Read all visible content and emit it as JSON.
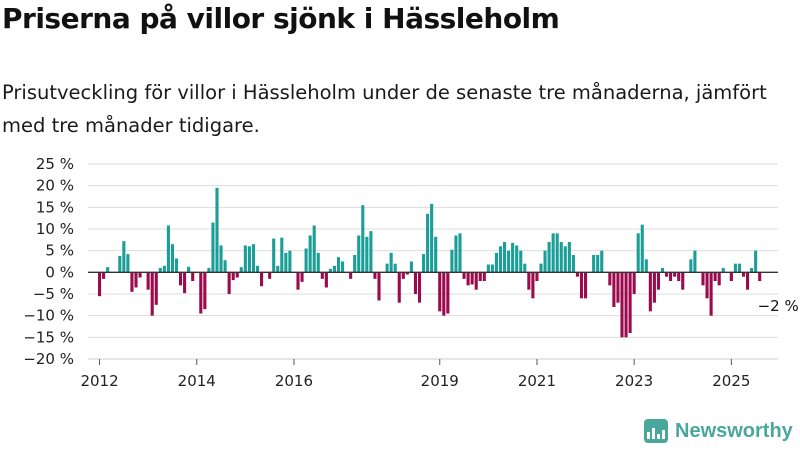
{
  "title": "Priserna på villor sjönk i Hässleholm",
  "subtitle": "Prisutveckling för villor i Hässleholm under de senaste tre månaderna, jämfört med tre månader tidigare.",
  "brand": {
    "name": "Newsworthy",
    "icon": "bar-chart-logo-icon"
  },
  "colors": {
    "positive": "#1a9e97",
    "negative": "#9b0a4d",
    "grid": "#dddddd",
    "axis": "#333333"
  },
  "chart_data": {
    "type": "bar",
    "ylabel": "",
    "xlabel": "",
    "ylim": [
      -20,
      25
    ],
    "yticks": [
      25,
      20,
      15,
      10,
      5,
      0,
      -5,
      -10,
      -15,
      -20
    ],
    "ytick_labels": [
      "25 %",
      "20 %",
      "15 %",
      "10 %",
      "5 %",
      "0 %",
      "−5 %",
      "−10 %",
      "−15 %",
      "−20 %"
    ],
    "xticks": [
      2012,
      2014,
      2016,
      2019,
      2021,
      2023,
      2025
    ],
    "x_start": "2012-01",
    "grid": true,
    "annotation": {
      "text": "−2 %",
      "target": "last"
    },
    "values": [
      -5.5,
      -1.5,
      1.2,
      0,
      0,
      3.8,
      7.2,
      4.2,
      -4.5,
      -3.5,
      -1.2,
      0,
      -4.0,
      -10.0,
      -7.5,
      1.0,
      1.5,
      10.8,
      6.5,
      3.2,
      -3.0,
      -4.8,
      1.3,
      -2.0,
      0,
      -9.5,
      -8.5,
      1.0,
      11.5,
      19.5,
      6.2,
      2.8,
      -5.0,
      -1.8,
      -1.2,
      1.2,
      6.2,
      6.0,
      6.5,
      1.5,
      -3.2,
      0,
      -1.5,
      7.8,
      1.5,
      8.0,
      4.5,
      5.0,
      0,
      -4.0,
      -2.2,
      5.5,
      8.5,
      10.8,
      4.5,
      -1.5,
      -3.5,
      0.8,
      1.5,
      3.5,
      2.5,
      0,
      -1.5,
      4.0,
      8.5,
      15.5,
      8.2,
      9.5,
      -1.5,
      -6.5,
      0,
      2.0,
      4.5,
      2.0,
      -7.0,
      -1.5,
      -0.5,
      2.5,
      -5.0,
      -7.0,
      4.2,
      13.5,
      15.8,
      8.2,
      -9.0,
      -10.0,
      -9.5,
      5.2,
      8.5,
      9.0,
      -1.5,
      -3.0,
      -2.8,
      -4.0,
      -2.0,
      -2.0,
      1.8,
      1.8,
      4.5,
      6.0,
      7.0,
      5.0,
      6.8,
      6.2,
      5.0,
      2.0,
      -4.0,
      -6.0,
      -2.0,
      2.0,
      5.0,
      7.0,
      9.0,
      9.0,
      7.0,
      6.0,
      7.0,
      4.0,
      -1.0,
      -6.0,
      -6.0,
      0,
      4.0,
      4.0,
      5.0,
      0,
      -3.0,
      -8.0,
      -7.0,
      -15.0,
      -15.0,
      -14.0,
      -5.0,
      9.0,
      11.0,
      3.0,
      -9.0,
      -7.0,
      -4.0,
      1.0,
      -1.0,
      -2.0,
      -1.0,
      -2.0,
      -4.0,
      0,
      3.0,
      5.0,
      0,
      -3.0,
      -6.0,
      -10.0,
      -2.0,
      -3.0,
      1.0,
      0,
      -2.0,
      2.0,
      2.0,
      -1.0,
      -4.0,
      1.0,
      5.0,
      -2.0
    ]
  }
}
